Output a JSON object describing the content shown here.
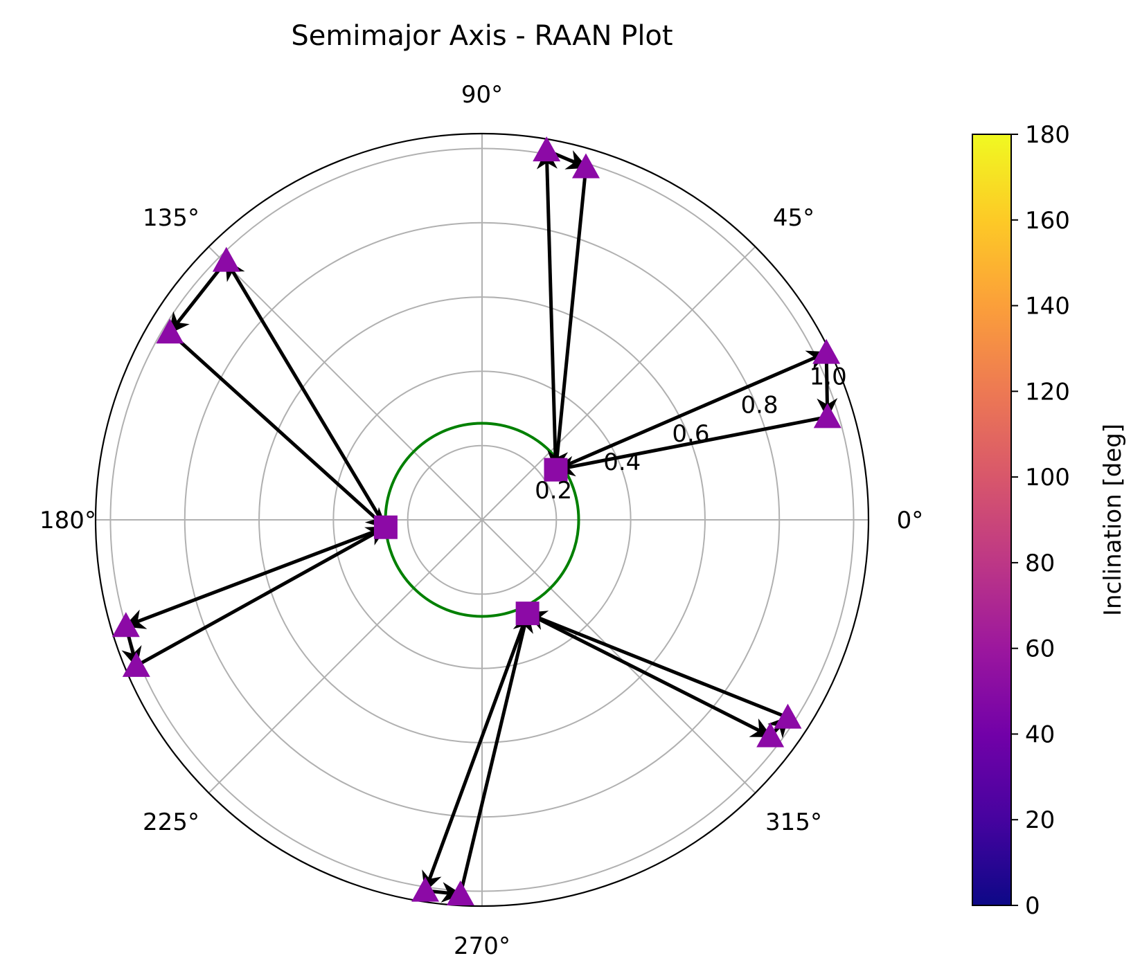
{
  "chart_data": {
    "type": "polar-scatter",
    "title": "Semimajor Axis - RAAN Plot",
    "angular_ticks": [
      "0°",
      "45°",
      "90°",
      "135°",
      "180°",
      "225°",
      "270°",
      "315°"
    ],
    "angular_tick_values_deg": [
      0,
      45,
      90,
      135,
      180,
      225,
      270,
      315
    ],
    "radial_ticks": [
      "0.2",
      "0.4",
      "0.6",
      "0.8",
      "1.0"
    ],
    "radial_tick_values": [
      0.2,
      0.4,
      0.6,
      0.8,
      1.0
    ],
    "rlim": [
      0,
      1.04
    ],
    "grid": true,
    "reference_circle": {
      "r": 0.26,
      "color": "#008000"
    },
    "marker_color": "#8c0aa6",
    "arrow_color": "#000000",
    "groups": [
      {
        "center": {
          "theta": 34.2,
          "r": 0.24
        },
        "ends": [
          {
            "theta": 80.1,
            "r": 1.01
          },
          {
            "theta": 73.6,
            "r": 0.99
          },
          {
            "theta": 25.9,
            "r": 1.03
          },
          {
            "theta": 16.6,
            "r": 0.97
          }
        ]
      },
      {
        "center": {
          "theta": 184.4,
          "r": 0.26
        },
        "ends": [
          {
            "theta": 134.6,
            "r": 0.98
          },
          {
            "theta": 149.0,
            "r": 0.98
          },
          {
            "theta": 196.6,
            "r": 1.0
          },
          {
            "theta": 202.9,
            "r": 1.01
          }
        ]
      },
      {
        "center": {
          "theta": 295.9,
          "r": 0.28
        },
        "ends": [
          {
            "theta": 261.3,
            "r": 1.01
          },
          {
            "theta": 266.7,
            "r": 1.01
          },
          {
            "theta": 323.1,
            "r": 0.97
          },
          {
            "theta": 327.1,
            "r": 0.98
          }
        ]
      }
    ],
    "colorbar": {
      "label": "Inclination [deg]",
      "range": [
        0,
        180
      ],
      "ticks": [
        "0",
        "20",
        "40",
        "60",
        "80",
        "100",
        "120",
        "140",
        "160",
        "180"
      ],
      "tick_values": [
        0,
        20,
        40,
        60,
        80,
        100,
        120,
        140,
        160,
        180
      ],
      "colormap": "plasma",
      "stops": [
        "#0d0887",
        "#46039f",
        "#7201a8",
        "#9c179e",
        "#bd3786",
        "#d8576b",
        "#ed7953",
        "#fb9f3a",
        "#fdca26",
        "#f0f921"
      ]
    }
  }
}
